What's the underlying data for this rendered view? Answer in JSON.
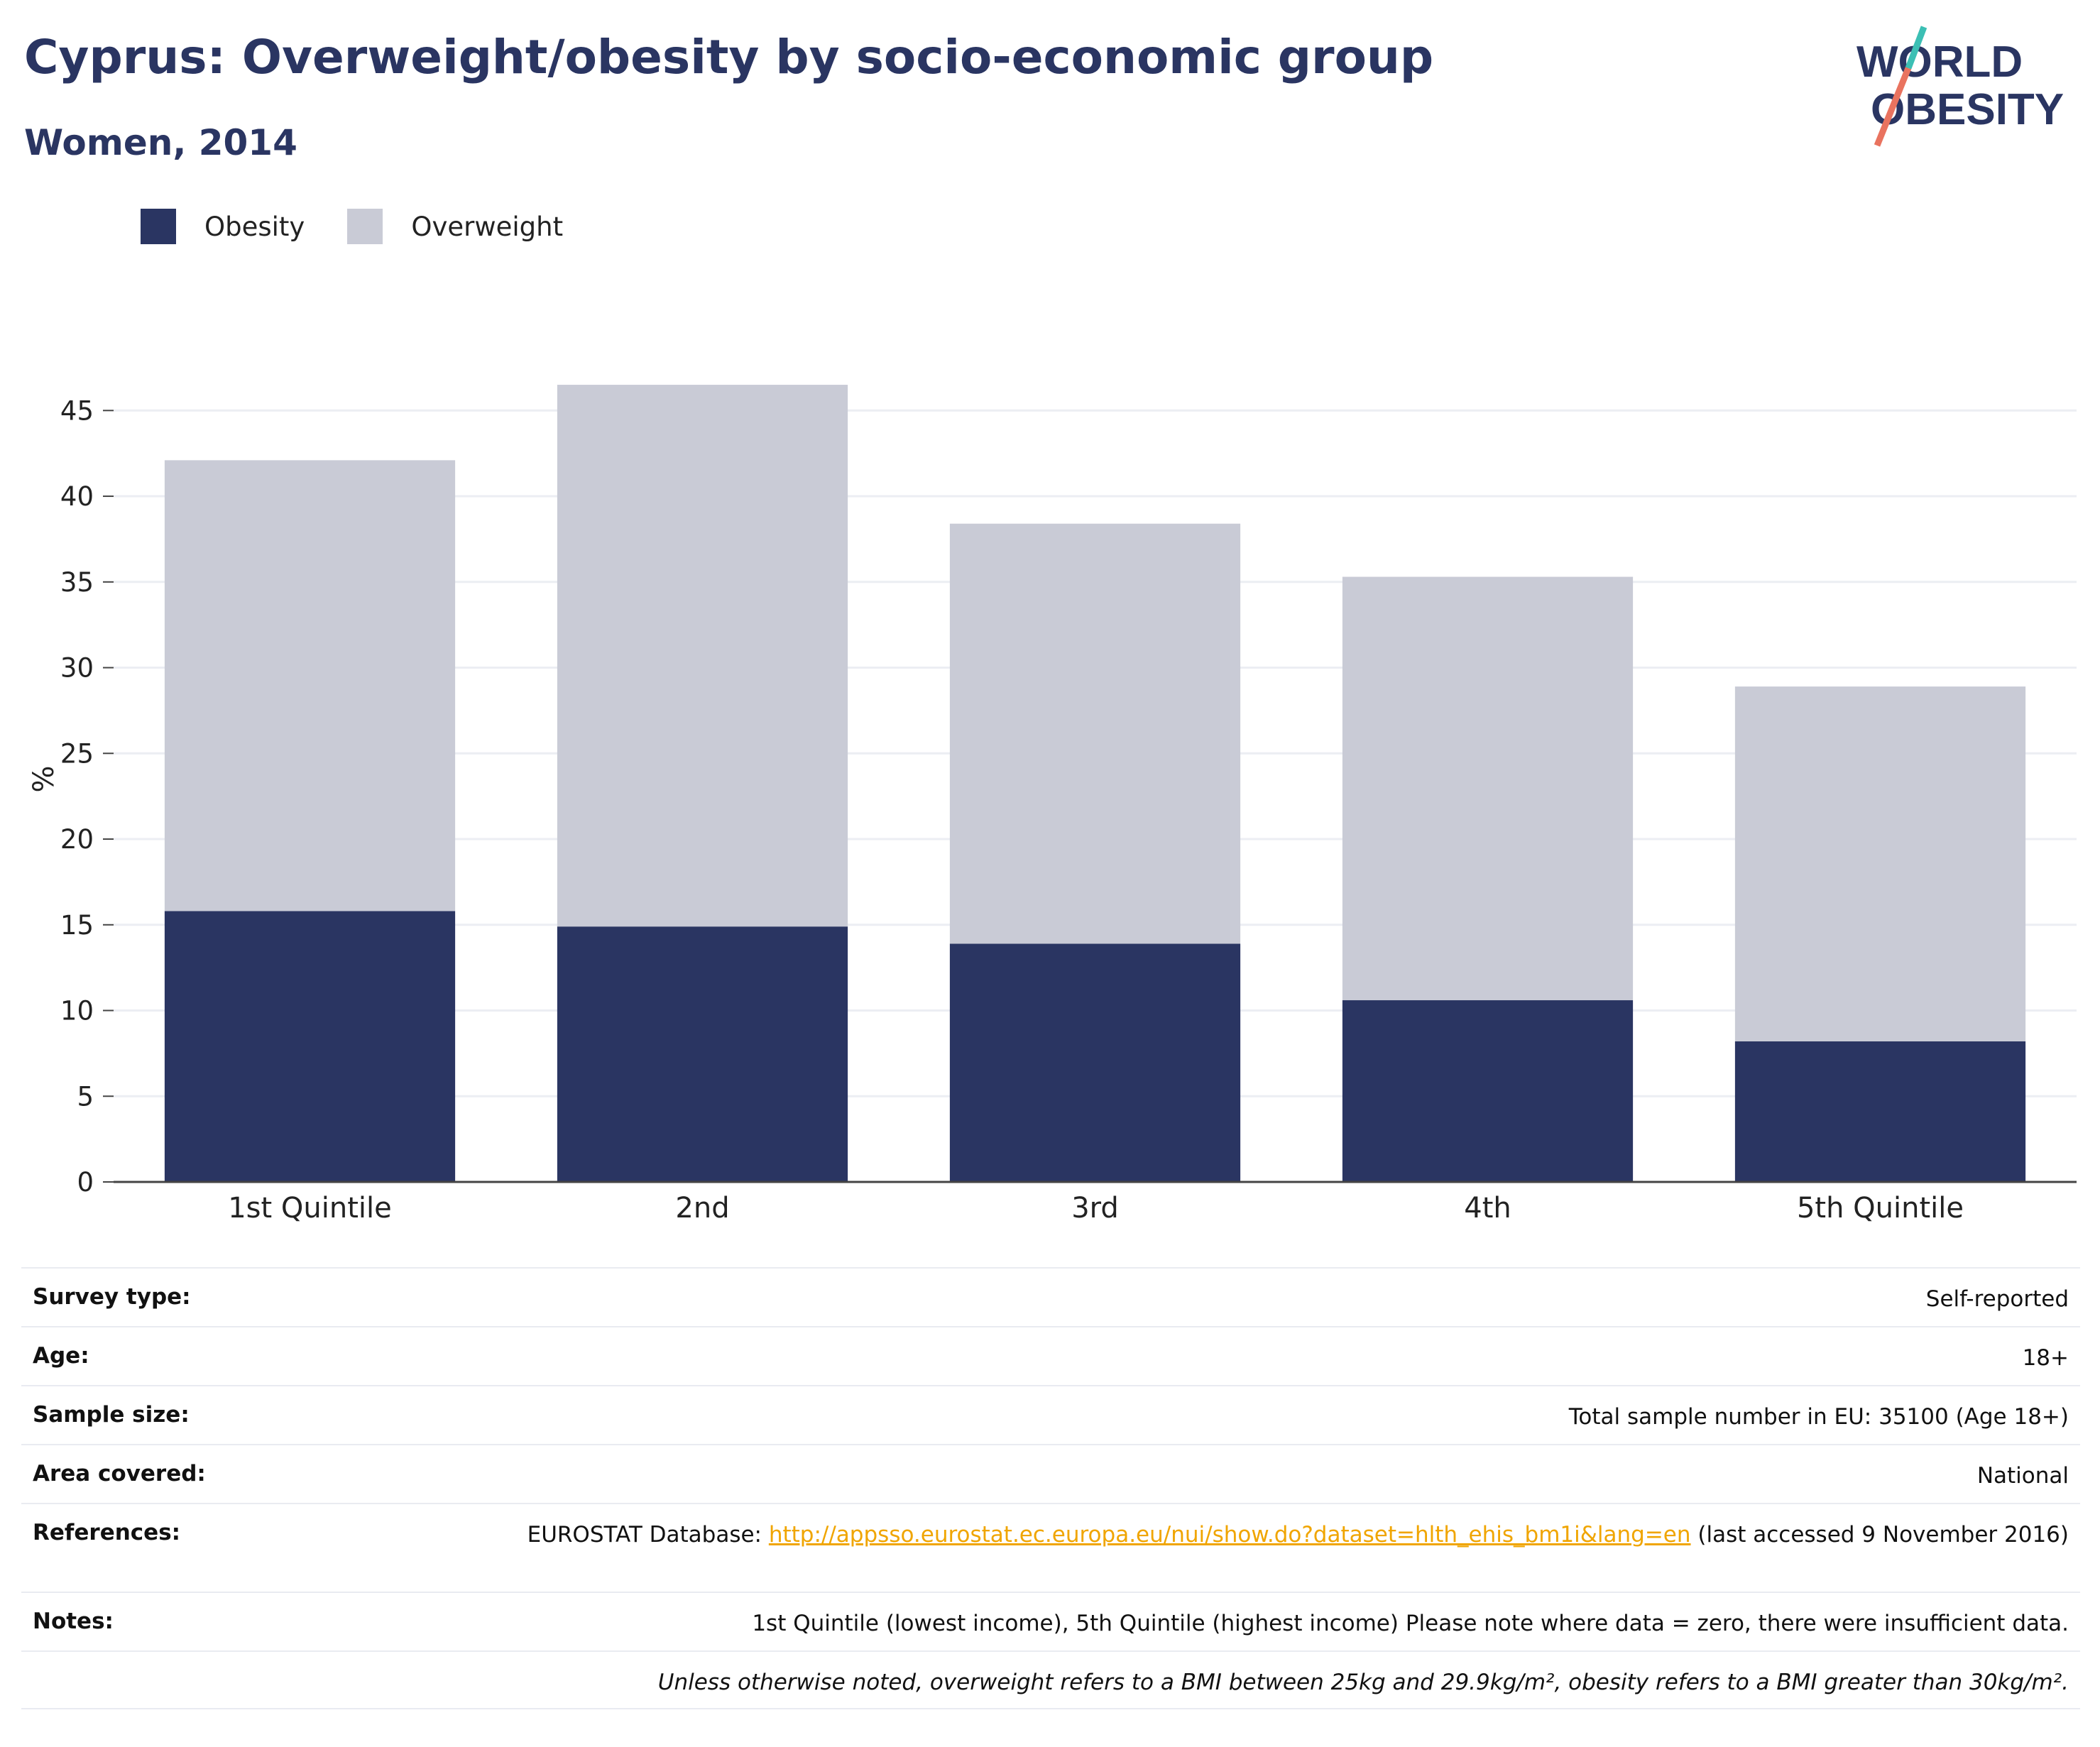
{
  "header": {
    "title": "Cyprus: Overweight/obesity by socio-economic group",
    "subtitle": "Women, 2014",
    "logo_line1": "WORLD",
    "logo_line2": "OBESITY"
  },
  "colors": {
    "obesity": "#2a3562",
    "overweight": "#c9cbd6",
    "logo_text": "#2a3562",
    "logo_teal": "#3cbfb4",
    "logo_coral": "#e9735f",
    "link": "#f0a500"
  },
  "chart_data": {
    "type": "bar",
    "stacked": true,
    "categories": [
      "1st Quintile",
      "2nd",
      "3rd",
      "4th",
      "5th Quintile"
    ],
    "series": [
      {
        "name": "Obesity",
        "values": [
          15.8,
          14.9,
          13.9,
          10.6,
          8.2
        ]
      },
      {
        "name": "Overweight",
        "values": [
          26.3,
          31.6,
          24.5,
          24.7,
          20.7
        ]
      }
    ],
    "ylabel": "%",
    "xlabel": "",
    "ylim": [
      0,
      47
    ],
    "yticks": [
      0,
      5,
      10,
      15,
      20,
      25,
      30,
      35,
      40,
      45
    ],
    "grid": true,
    "legend_position": "top-left"
  },
  "info": {
    "survey_type": {
      "label": "Survey type:",
      "value": "Self-reported"
    },
    "age": {
      "label": "Age:",
      "value": "18+"
    },
    "sample_size": {
      "label": "Sample size:",
      "value": "Total sample number in EU: 35100 (Age 18+)"
    },
    "area_covered": {
      "label": "Area covered:",
      "value": "National"
    },
    "references": {
      "label": "References:",
      "prefix": "EUROSTAT Database: ",
      "link": "http://appsso.eurostat.ec.europa.eu/nui/show.do?dataset=hlth_ehis_bm1i&lang=en",
      "suffix": " (last accessed 9 November 2016)"
    },
    "notes": {
      "label": "Notes:",
      "value": "1st Quintile (lowest income), 5th Quintile (highest income) Please note where data = zero, there were insufficient data."
    },
    "definition": "Unless otherwise noted, overweight refers to a BMI between 25kg and 29.9kg/m², obesity refers to a BMI greater than 30kg/m²."
  }
}
